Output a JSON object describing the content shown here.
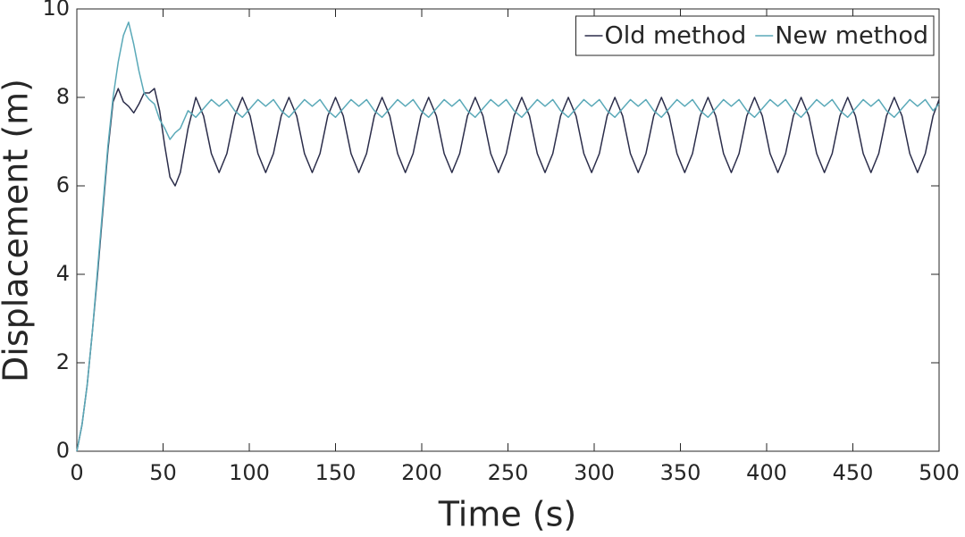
{
  "chart_data": {
    "type": "line",
    "xlabel": "Time (s)",
    "ylabel": "Displacement (m)",
    "x": [
      0,
      3,
      6,
      9,
      12,
      15,
      18,
      21,
      24,
      27,
      30,
      33,
      36,
      39,
      42,
      45,
      48,
      51,
      54,
      57,
      60,
      64.5,
      69,
      73.5,
      78,
      82.5,
      87,
      91.5,
      96,
      100.5,
      105,
      109.5,
      114,
      118.5,
      123,
      127.5,
      132,
      136.5,
      141,
      145.5,
      150,
      154.5,
      159,
      163.5,
      168,
      172.5,
      177,
      181.5,
      186,
      190.5,
      195,
      199.5,
      204,
      208.5,
      213,
      217.5,
      222,
      226.5,
      231,
      235.5,
      240,
      244.5,
      249,
      253.5,
      258,
      262.5,
      267,
      271.5,
      276,
      280.5,
      285,
      289.5,
      294,
      298.5,
      303,
      307.5,
      312,
      316.5,
      321,
      325.5,
      330,
      334.5,
      339,
      343.5,
      348,
      352.5,
      357,
      361.5,
      366,
      370.5,
      375,
      379.5,
      384,
      388.5,
      393,
      397.5,
      402,
      406.5,
      411,
      415.5,
      420,
      424.5,
      429,
      433.5,
      438,
      442.5,
      447,
      451.5,
      456,
      460.5,
      465,
      469.5,
      474,
      478.5,
      483,
      487.5,
      492,
      496.5,
      500
    ],
    "series": [
      {
        "name": "Old method",
        "color": "#2b2d4a",
        "values": [
          0,
          0.6,
          1.5,
          2.7,
          4.0,
          5.4,
          6.8,
          7.9,
          8.2,
          7.9,
          7.8,
          7.65,
          7.85,
          8.1,
          8.1,
          8.2,
          7.7,
          6.9,
          6.2,
          6.0,
          6.3,
          7.3,
          8.0,
          7.58,
          6.73,
          6.3,
          6.73,
          7.58,
          8.0,
          7.58,
          6.73,
          6.3,
          6.73,
          7.58,
          8.0,
          7.58,
          6.73,
          6.3,
          6.73,
          7.58,
          8.0,
          7.58,
          6.73,
          6.3,
          6.73,
          7.58,
          8.0,
          7.58,
          6.73,
          6.3,
          6.73,
          7.58,
          8.0,
          7.58,
          6.73,
          6.3,
          6.73,
          7.58,
          8.0,
          7.58,
          6.73,
          6.3,
          6.73,
          7.58,
          8.0,
          7.58,
          6.73,
          6.3,
          6.73,
          7.58,
          8.0,
          7.58,
          6.73,
          6.3,
          6.73,
          7.58,
          8.0,
          7.58,
          6.73,
          6.3,
          6.73,
          7.58,
          8.0,
          7.58,
          6.73,
          6.3,
          6.73,
          7.58,
          8.0,
          7.58,
          6.73,
          6.3,
          6.73,
          7.58,
          8.0,
          7.58,
          6.73,
          6.3,
          6.73,
          7.58,
          8.0,
          7.58,
          6.73,
          6.3,
          6.73,
          7.58,
          8.0,
          7.58,
          6.73,
          6.3,
          6.73,
          7.58,
          8.0,
          7.58,
          6.73,
          6.3,
          6.73,
          7.58,
          7.95
        ]
      },
      {
        "name": "New method",
        "color": "#5aa9b8",
        "values": [
          0,
          0.6,
          1.5,
          2.7,
          4.1,
          5.5,
          6.9,
          8.0,
          8.8,
          9.4,
          9.7,
          9.2,
          8.6,
          8.1,
          7.95,
          7.85,
          7.5,
          7.3,
          7.05,
          7.2,
          7.3,
          7.7,
          7.55,
          7.75,
          7.95,
          7.8,
          7.95,
          7.7,
          7.55,
          7.75,
          7.95,
          7.8,
          7.95,
          7.7,
          7.55,
          7.75,
          7.95,
          7.8,
          7.95,
          7.7,
          7.55,
          7.75,
          7.95,
          7.8,
          7.95,
          7.7,
          7.55,
          7.75,
          7.95,
          7.8,
          7.95,
          7.7,
          7.55,
          7.75,
          7.95,
          7.8,
          7.95,
          7.7,
          7.55,
          7.75,
          7.95,
          7.8,
          7.95,
          7.7,
          7.55,
          7.75,
          7.95,
          7.8,
          7.95,
          7.7,
          7.55,
          7.75,
          7.95,
          7.8,
          7.95,
          7.7,
          7.55,
          7.75,
          7.95,
          7.8,
          7.95,
          7.7,
          7.55,
          7.75,
          7.95,
          7.8,
          7.95,
          7.7,
          7.55,
          7.75,
          7.95,
          7.8,
          7.95,
          7.7,
          7.55,
          7.75,
          7.95,
          7.8,
          7.95,
          7.7,
          7.55,
          7.75,
          7.95,
          7.8,
          7.95,
          7.7,
          7.55,
          7.75,
          7.95,
          7.8,
          7.95,
          7.7,
          7.55,
          7.75,
          7.95,
          7.8,
          7.95,
          7.7,
          7.85
        ]
      }
    ],
    "xlim": [
      0,
      500
    ],
    "xticks": [
      0,
      50,
      100,
      150,
      200,
      250,
      300,
      350,
      400,
      450,
      500
    ],
    "ylim": [
      0,
      10
    ],
    "yticks": [
      0,
      2,
      4,
      6,
      8,
      10
    ],
    "grid": false,
    "legend_position": "northeast"
  }
}
